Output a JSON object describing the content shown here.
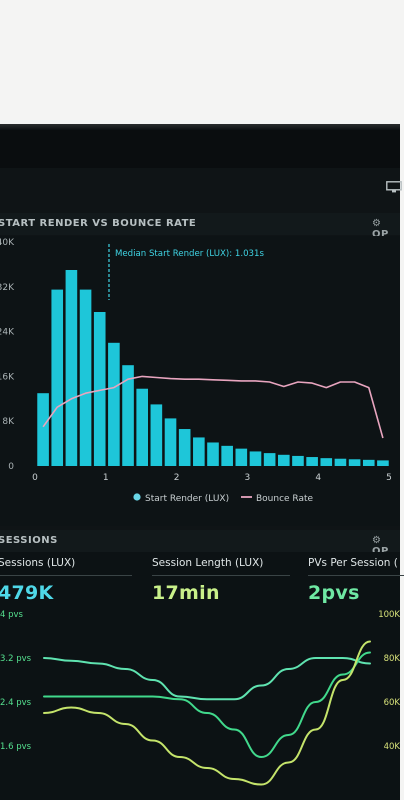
{
  "header_icon": "monitor-icon",
  "render_panel": {
    "title": "Start Render vs Bounce Rate",
    "options_label": "OP",
    "annotation": "Median Start Render (LUX): 1.031s",
    "legend": {
      "series1": "Start Render (LUX)",
      "series2": "Bounce Rate"
    }
  },
  "sessions_panel": {
    "title": "Sessions",
    "options_label": "OP",
    "kpis": [
      {
        "label": "Sessions (LUX)",
        "value": "479K",
        "color": "#4fd8e8"
      },
      {
        "label": "Session Length (LUX)",
        "value": "17min",
        "color": "#c9f08a"
      },
      {
        "label": "PVs Per Session (",
        "value": "2pvs",
        "color": "#6fe8a3"
      }
    ],
    "left_axis": [
      "4 pvs",
      "3.2 pvs",
      "2.4 pvs",
      "1.6 pvs"
    ],
    "right_axis": [
      "100K",
      "80K",
      "60K",
      "40K"
    ]
  },
  "colors": {
    "bars": "#1ec6d9",
    "bounce": "#e8a5bf",
    "annotation": "#3fd3e3",
    "line_teal": "#5fe3b0",
    "line_lime": "#c5e46b",
    "line_green": "#41d98c"
  },
  "chart_data": [
    {
      "type": "bar",
      "title": "Start Render vs Bounce Rate",
      "x": [
        0.1,
        0.3,
        0.5,
        0.7,
        0.9,
        1.1,
        1.3,
        1.5,
        1.7,
        1.9,
        2.1,
        2.3,
        2.5,
        2.7,
        2.9,
        3.1,
        3.3,
        3.5,
        3.7,
        3.9,
        4.1,
        4.3,
        4.5,
        4.7,
        4.9
      ],
      "series": [
        {
          "name": "Start Render (LUX)",
          "values": [
            13000,
            31500,
            35000,
            31500,
            27500,
            22000,
            18000,
            13800,
            11000,
            8500,
            6600,
            5100,
            4200,
            3600,
            3100,
            2600,
            2300,
            2000,
            1800,
            1600,
            1400,
            1300,
            1200,
            1100,
            1000
          ]
        },
        {
          "name": "Bounce Rate",
          "type": "line",
          "values": [
            7000,
            10500,
            12000,
            13000,
            13500,
            14000,
            15500,
            16000,
            15800,
            15600,
            15500,
            15500,
            15400,
            15300,
            15200,
            15200,
            15000,
            14200,
            15000,
            14800,
            14000,
            15000,
            15000,
            14000,
            5000
          ]
        }
      ],
      "xlim": [
        0,
        5
      ],
      "ylim": [
        0,
        40000
      ],
      "x_ticks": [
        "0",
        "1",
        "2",
        "3",
        "4",
        "5"
      ],
      "y_ticks": [
        "0",
        "8K",
        "16K",
        "24K",
        "32K",
        "40K"
      ],
      "median_marker": 1.031,
      "legend_position": "bottom"
    },
    {
      "type": "line",
      "title": "Sessions",
      "x": [
        0,
        1,
        2,
        3,
        4,
        5,
        6,
        7,
        8,
        9,
        10,
        11,
        12
      ],
      "y_ticks_left": [
        "4 pvs",
        "3.2 pvs",
        "2.4 pvs",
        "1.6 pvs"
      ],
      "y_ticks_right": [
        "100K",
        "80K",
        "60K",
        "40K"
      ],
      "series": [
        {
          "values": [
            3.2,
            3.15,
            3.1,
            3.0,
            2.8,
            2.5,
            2.45,
            2.45,
            2.7,
            3.0,
            3.2,
            3.2,
            3.1
          ]
        },
        {
          "values": [
            2.5,
            2.5,
            2.5,
            2.5,
            2.5,
            2.45,
            2.2,
            1.9,
            1.4,
            1.8,
            2.4,
            2.9,
            3.3
          ]
        },
        {
          "values": [
            2.2,
            2.3,
            2.2,
            2.0,
            1.7,
            1.4,
            1.2,
            1.0,
            0.9,
            1.3,
            1.9,
            2.8,
            3.5
          ]
        }
      ]
    }
  ]
}
